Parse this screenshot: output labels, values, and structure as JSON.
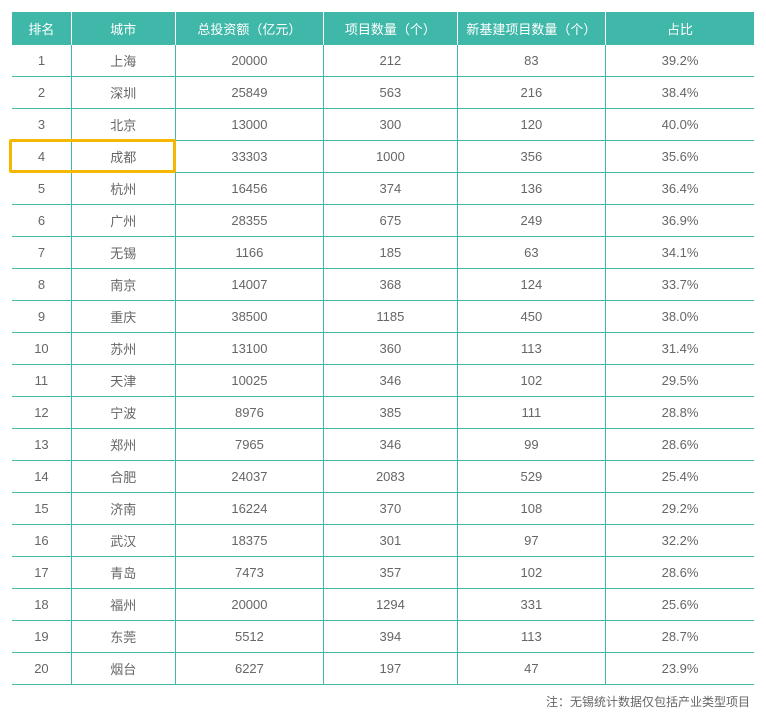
{
  "table": {
    "type": "table",
    "header_bg": "#3fb8a9",
    "header_text_color": "#ffffff",
    "border_color": "#3fb8a9",
    "cell_text_color": "#666666",
    "highlight_color": "#f5b700",
    "highlight_row_index": 3,
    "font_size": 13,
    "columns": [
      {
        "label": "排名",
        "width": "8%"
      },
      {
        "label": "城市",
        "width": "14%"
      },
      {
        "label": "总投资额（亿元）",
        "width": "20%"
      },
      {
        "label": "项目数量（个）",
        "width": "18%"
      },
      {
        "label": "新基建项目数量（个）",
        "width": "20%"
      },
      {
        "label": "占比",
        "width": "20%"
      }
    ],
    "rows": [
      [
        "1",
        "上海",
        "20000",
        "212",
        "83",
        "39.2%"
      ],
      [
        "2",
        "深圳",
        "25849",
        "563",
        "216",
        "38.4%"
      ],
      [
        "3",
        "北京",
        "13000",
        "300",
        "120",
        "40.0%"
      ],
      [
        "4",
        "成都",
        "33303",
        "1000",
        "356",
        "35.6%"
      ],
      [
        "5",
        "杭州",
        "16456",
        "374",
        "136",
        "36.4%"
      ],
      [
        "6",
        "广州",
        "28355",
        "675",
        "249",
        "36.9%"
      ],
      [
        "7",
        "无锡",
        "1166",
        "185",
        "63",
        "34.1%"
      ],
      [
        "8",
        "南京",
        "14007",
        "368",
        "124",
        "33.7%"
      ],
      [
        "9",
        "重庆",
        "38500",
        "1185",
        "450",
        "38.0%"
      ],
      [
        "10",
        "苏州",
        "13100",
        "360",
        "113",
        "31.4%"
      ],
      [
        "11",
        "天津",
        "10025",
        "346",
        "102",
        "29.5%"
      ],
      [
        "12",
        "宁波",
        "8976",
        "385",
        "111",
        "28.8%"
      ],
      [
        "13",
        "郑州",
        "7965",
        "346",
        "99",
        "28.6%"
      ],
      [
        "14",
        "合肥",
        "24037",
        "2083",
        "529",
        "25.4%"
      ],
      [
        "15",
        "济南",
        "16224",
        "370",
        "108",
        "29.2%"
      ],
      [
        "16",
        "武汉",
        "18375",
        "301",
        "97",
        "32.2%"
      ],
      [
        "17",
        "青岛",
        "7473",
        "357",
        "102",
        "28.6%"
      ],
      [
        "18",
        "福州",
        "20000",
        "1294",
        "331",
        "25.6%"
      ],
      [
        "19",
        "东莞",
        "5512",
        "394",
        "113",
        "28.7%"
      ],
      [
        "20",
        "烟台",
        "6227",
        "197",
        "47",
        "23.9%"
      ]
    ]
  },
  "footnote": "注：无锡统计数据仅包括产业类型项目"
}
